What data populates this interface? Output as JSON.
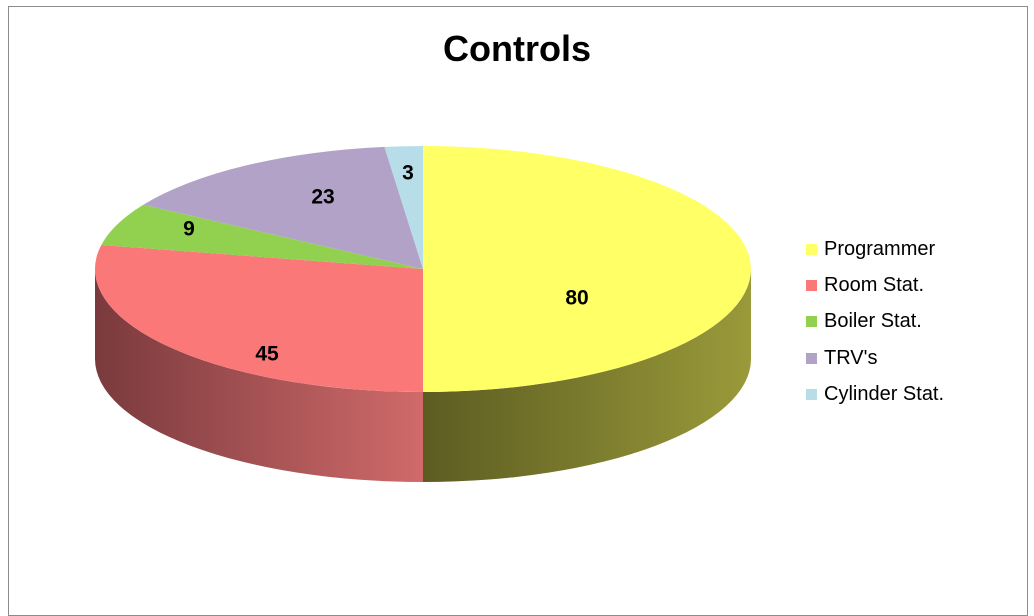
{
  "chart_data": {
    "type": "pie",
    "title": "Controls",
    "legend_position": "right",
    "slices": [
      {
        "label": "Programmer",
        "value": 80,
        "color": "#ffff66",
        "side_dark": "#5c5c22",
        "side_light": "#9a9a3a"
      },
      {
        "label": "Room Stat.",
        "value": 45,
        "color": "#fa7878",
        "side_dark": "#7a3a3d",
        "side_light": "#d06a6a"
      },
      {
        "label": "Boiler Stat.",
        "value": 9,
        "color": "#92d050",
        "side_dark": "#4a6a28",
        "side_light": "#7aa844"
      },
      {
        "label": "TRV's",
        "value": 23,
        "color": "#b3a2c7",
        "side_dark": "#5c5268",
        "side_light": "#9486a6"
      },
      {
        "label": "Cylinder Stat.",
        "value": 3,
        "color": "#b7dee8",
        "side_dark": "#5e7278",
        "side_light": "#9cbcc4"
      }
    ]
  }
}
